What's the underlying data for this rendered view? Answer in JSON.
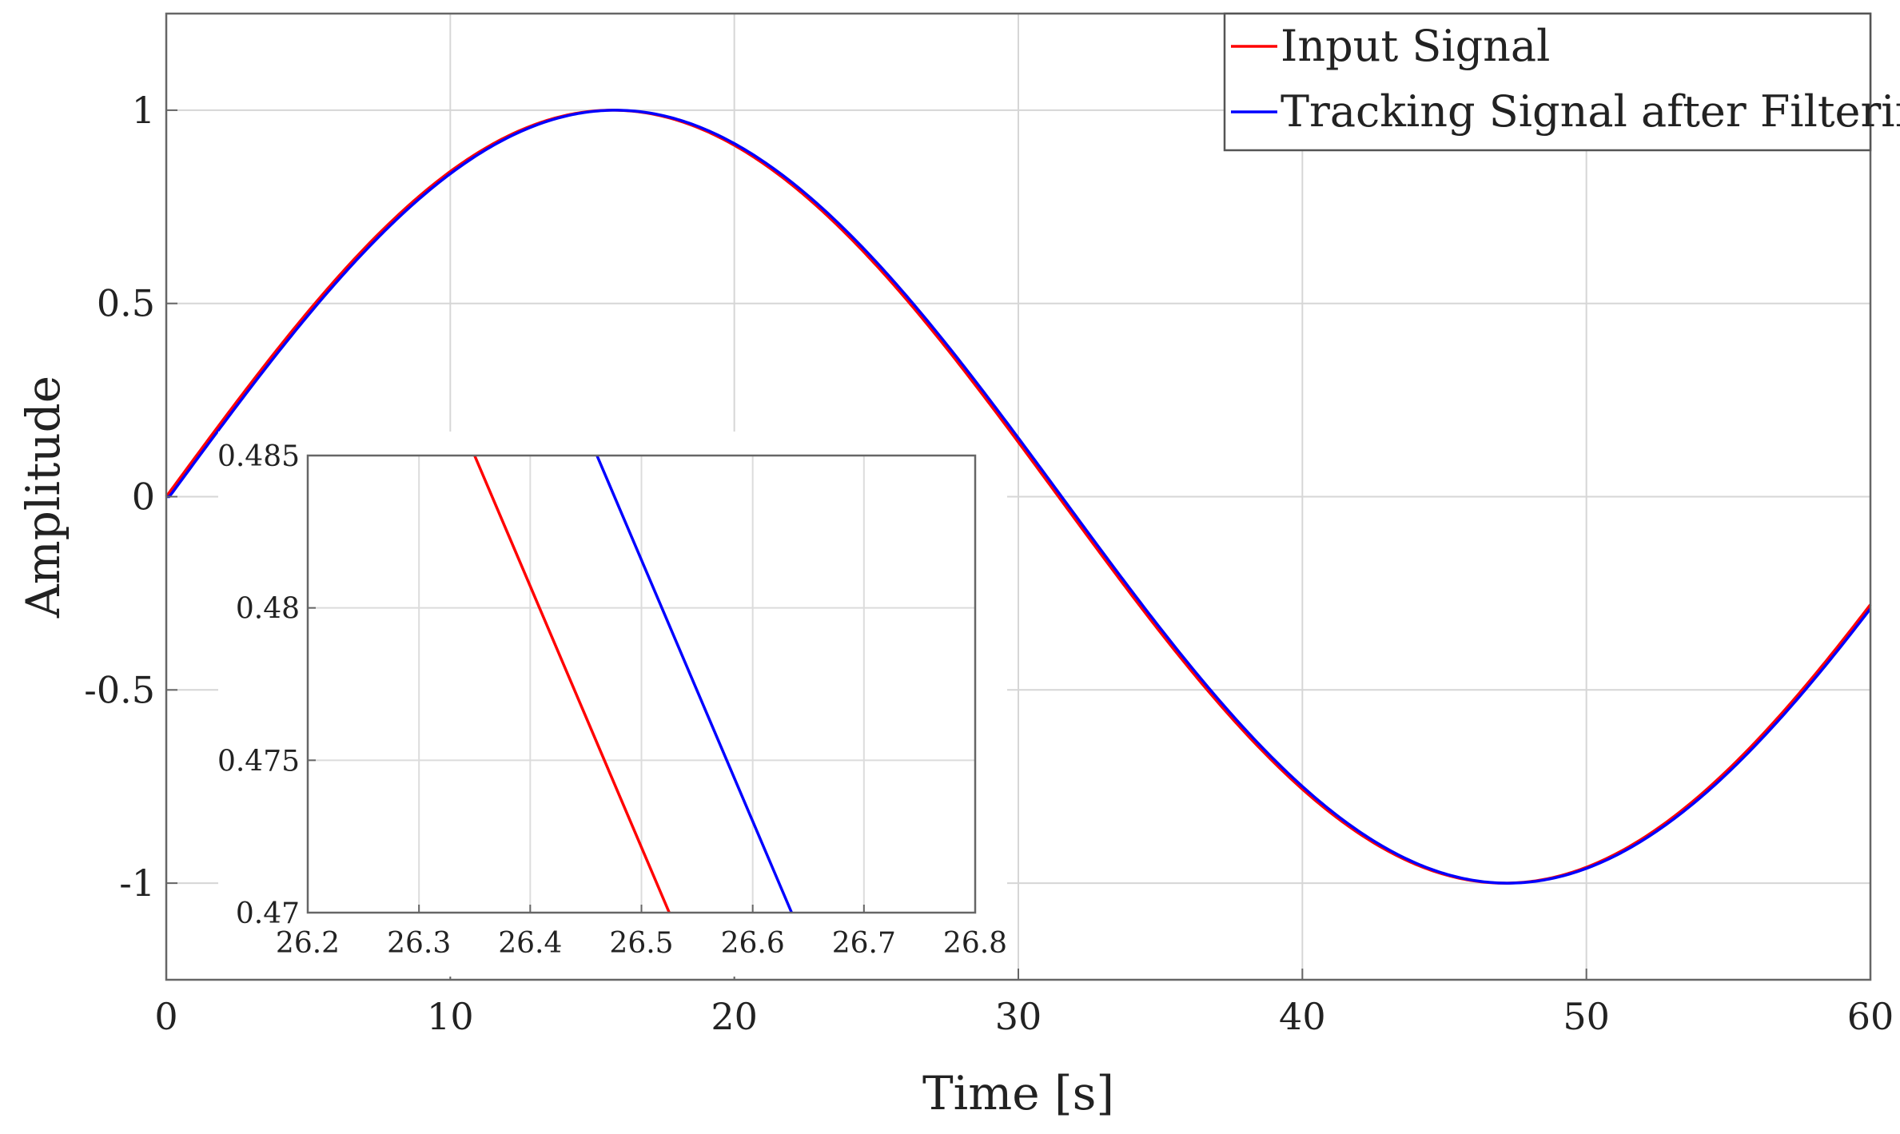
{
  "chart_data": [
    {
      "id": "main",
      "type": "line",
      "title": "",
      "xlabel": "Time [s]",
      "ylabel": "Amplitude",
      "xlim": [
        0,
        60
      ],
      "ylim": [
        -1.25,
        1.25
      ],
      "xticks": [
        0,
        10,
        20,
        30,
        40,
        50,
        60
      ],
      "xtick_labels": [
        "0",
        "10",
        "20",
        "30",
        "40",
        "50",
        "60"
      ],
      "yticks": [
        1,
        0.5,
        0,
        -0.5,
        -1
      ],
      "ytick_labels": [
        "1",
        "0.5",
        "0",
        "-0.5",
        "-1"
      ],
      "grid": true,
      "legend_position": "top-right",
      "series": [
        {
          "name": "Input Signal",
          "color": "#ff0000",
          "function": "sin",
          "amplitude": 1,
          "period": 62.83,
          "delay": 0,
          "x_range": [
            0,
            60
          ]
        },
        {
          "name": "Tracking Signal after Filtering",
          "color": "#0000ff",
          "function": "sin",
          "amplitude": 1,
          "period": 62.83,
          "delay": 0.11,
          "x_range": [
            0,
            60
          ]
        }
      ]
    },
    {
      "id": "inset",
      "type": "line",
      "title": "",
      "xlabel": "",
      "ylabel": "",
      "xlim": [
        26.2,
        26.8
      ],
      "ylim": [
        0.47,
        0.485
      ],
      "xticks": [
        26.2,
        26.3,
        26.4,
        26.5,
        26.6,
        26.7,
        26.8
      ],
      "xtick_labels": [
        "26.2",
        "26.3",
        "26.4",
        "26.5",
        "26.6",
        "26.7",
        "26.8"
      ],
      "yticks": [
        0.485,
        0.48,
        0.475,
        0.47
      ],
      "ytick_labels": [
        "0.485",
        "0.48",
        "0.475",
        "0.47"
      ],
      "grid": true,
      "series": [
        {
          "name": "Input Signal",
          "color": "#ff0000",
          "x": [
            26.35,
            26.525
          ],
          "y": [
            0.485,
            0.47
          ]
        },
        {
          "name": "Tracking Signal after Filtering",
          "color": "#0000ff",
          "x": [
            26.46,
            26.635
          ],
          "y": [
            0.485,
            0.47
          ]
        }
      ]
    }
  ]
}
